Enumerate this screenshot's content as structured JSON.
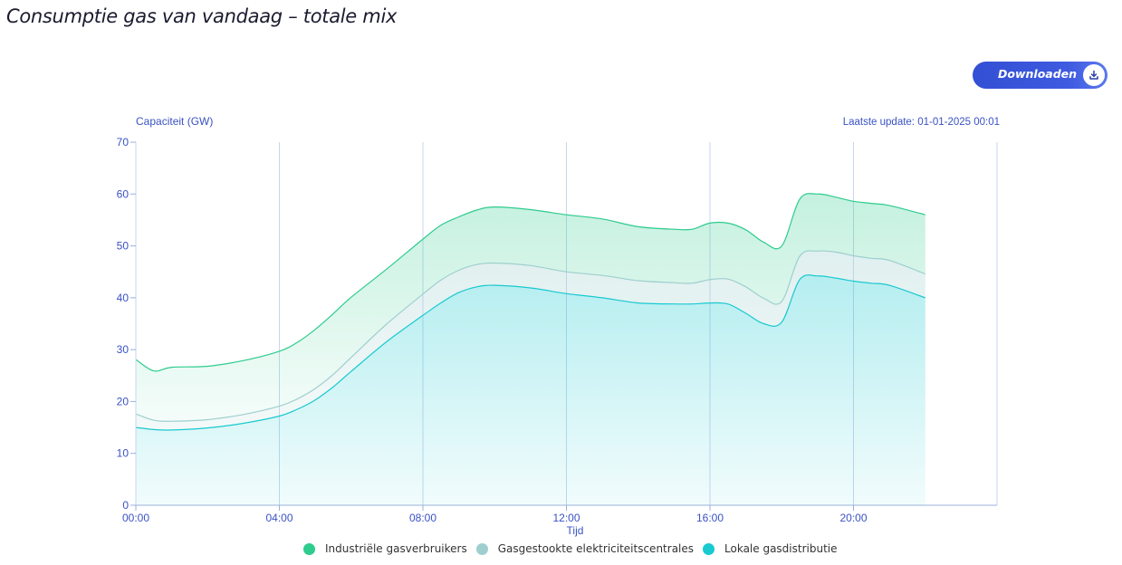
{
  "header": {
    "title": "Consumptie gas van vandaag – totale mix",
    "download_label": "Downloaden"
  },
  "chart_data": {
    "type": "area",
    "stacked": true,
    "ylabel": "Capaciteit (GW)",
    "xlabel": "Tijd",
    "update_text": "Laatste update: 01-01-2025 00:01",
    "ylim": [
      0,
      70
    ],
    "yticks": [
      0,
      10,
      20,
      30,
      40,
      50,
      60,
      70
    ],
    "xlim": [
      0,
      24
    ],
    "xticks": [
      {
        "value": 0,
        "label": "00:00"
      },
      {
        "value": 4,
        "label": "04:00"
      },
      {
        "value": 8,
        "label": "08:00"
      },
      {
        "value": 12,
        "label": "12:00"
      },
      {
        "value": 16,
        "label": "16:00"
      },
      {
        "value": 20,
        "label": "20:00"
      }
    ],
    "x": [
      0,
      0.5,
      1,
      2,
      3,
      4,
      4.5,
      5,
      5.5,
      6,
      7,
      8,
      8.5,
      9,
      9.5,
      10,
      11,
      12,
      13,
      14,
      15,
      15.5,
      16,
      16.5,
      17,
      17.5,
      18,
      18.5,
      19,
      19.5,
      20,
      20.5,
      21,
      22
    ],
    "series": [
      {
        "name": "Lokale gasdistributie",
        "color": "#18c9d0",
        "values": [
          15.0,
          14.6,
          14.5,
          14.9,
          15.8,
          17.2,
          18.5,
          20.3,
          22.8,
          25.8,
          31.6,
          36.6,
          39.0,
          41.0,
          42.1,
          42.4,
          41.9,
          40.8,
          40.0,
          39.0,
          38.8,
          38.8,
          39.0,
          38.8,
          37.0,
          35.0,
          35.3,
          43.5,
          44.2,
          43.8,
          43.2,
          42.8,
          42.4,
          40.0
        ]
      },
      {
        "name": "Gasgestookte elektriciteitscentrales",
        "color": "#9ecfce",
        "values": [
          2.6,
          1.8,
          1.7,
          1.6,
          1.7,
          1.9,
          2.0,
          2.2,
          2.4,
          2.7,
          3.4,
          4.1,
          4.4,
          4.3,
          4.3,
          4.3,
          4.3,
          4.2,
          4.3,
          4.3,
          4.1,
          4.0,
          4.5,
          4.8,
          5.1,
          4.9,
          4.0,
          4.5,
          4.8,
          5.0,
          4.9,
          4.8,
          4.8,
          4.6
        ]
      },
      {
        "name": "Industriële gasverbruikers",
        "color": "#2ecc8e",
        "values": [
          10.5,
          9.5,
          10.4,
          10.3,
          10.4,
          10.6,
          10.9,
          11.4,
          11.7,
          11.6,
          10.6,
          10.6,
          10.6,
          10.3,
          10.5,
          10.8,
          10.8,
          11.0,
          10.9,
          10.4,
          10.3,
          10.4,
          10.9,
          10.8,
          11.0,
          10.8,
          10.7,
          11.0,
          11.0,
          10.6,
          10.5,
          10.6,
          10.6,
          11.4
        ]
      }
    ],
    "legend_position": "bottom",
    "grid": "vertical"
  }
}
